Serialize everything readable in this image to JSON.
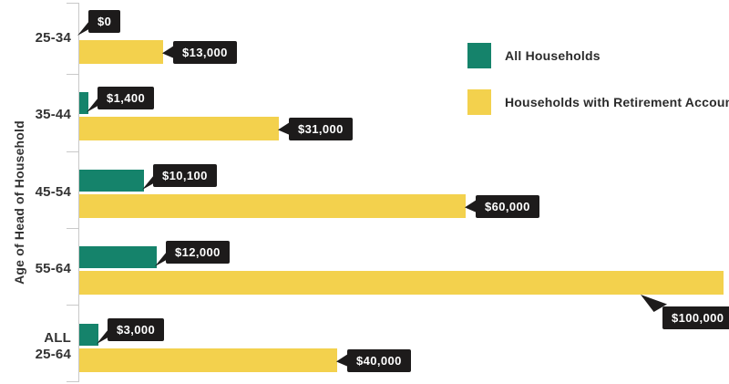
{
  "chart_data": {
    "type": "bar",
    "orientation": "horizontal",
    "title": "",
    "xlabel": "",
    "ylabel": "Age of Head of Household",
    "categories": [
      "25-34",
      "35-44",
      "45-54",
      "55-64",
      "ALL\n25-64"
    ],
    "series": [
      {
        "name": "All Households",
        "color": "#15836b",
        "values": [
          0,
          1400,
          10100,
          12000,
          3000
        ],
        "labels": [
          "$0",
          "$1,400",
          "$10,100",
          "$12,000",
          "$3,000"
        ]
      },
      {
        "name": "Households with Retirement Accounts",
        "color": "#f3d14d",
        "values": [
          13000,
          31000,
          60000,
          100000,
          40000
        ],
        "labels": [
          "$13,000",
          "$31,000",
          "$60,000",
          "$100,000",
          "$40,000"
        ]
      }
    ],
    "xlim": [
      0,
      100000
    ],
    "grid": false,
    "legend_position": "top-right",
    "callout_style": {
      "background": "#1d1b1b",
      "text_color": "#ffffff"
    },
    "axis_color": "#c9c9c9"
  }
}
